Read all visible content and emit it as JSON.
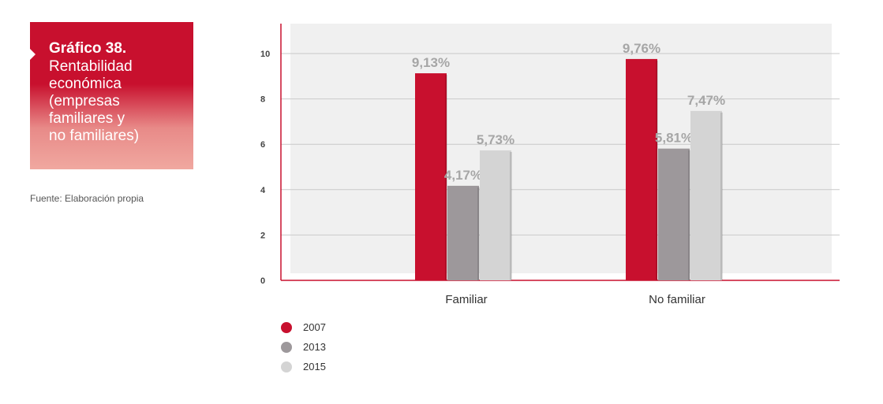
{
  "header": {
    "number": "Gráfico 38.",
    "title_lines": [
      "Rentabilidad",
      "económica",
      "(empresas",
      "familiares y",
      "no familiares)"
    ]
  },
  "source": "Fuente: Elaboración propia",
  "colors": {
    "accent": "#c8102e",
    "s2007": "#c8102e",
    "s2013": "#9d989b",
    "s2015": "#d4d4d4",
    "plot_bg": "#f0f0f0",
    "label_grey": "#a6a6a6"
  },
  "chart_data": {
    "type": "bar",
    "categories": [
      "Familiar",
      "No familiar"
    ],
    "series": [
      {
        "name": "2007",
        "values": [
          9.13,
          9.76
        ],
        "labels": [
          "9,13%",
          "9,76%"
        ]
      },
      {
        "name": "2013",
        "values": [
          4.17,
          5.81
        ],
        "labels": [
          "4,17%",
          "5,81%"
        ]
      },
      {
        "name": "2015",
        "values": [
          5.73,
          7.47
        ],
        "labels": [
          "5,73%",
          "7,47%"
        ]
      }
    ],
    "yticks": [
      "0",
      "2",
      "4",
      "6",
      "8",
      "10"
    ],
    "ylim": [
      0,
      11
    ],
    "grid": true,
    "legend_position": "bottom-left"
  }
}
